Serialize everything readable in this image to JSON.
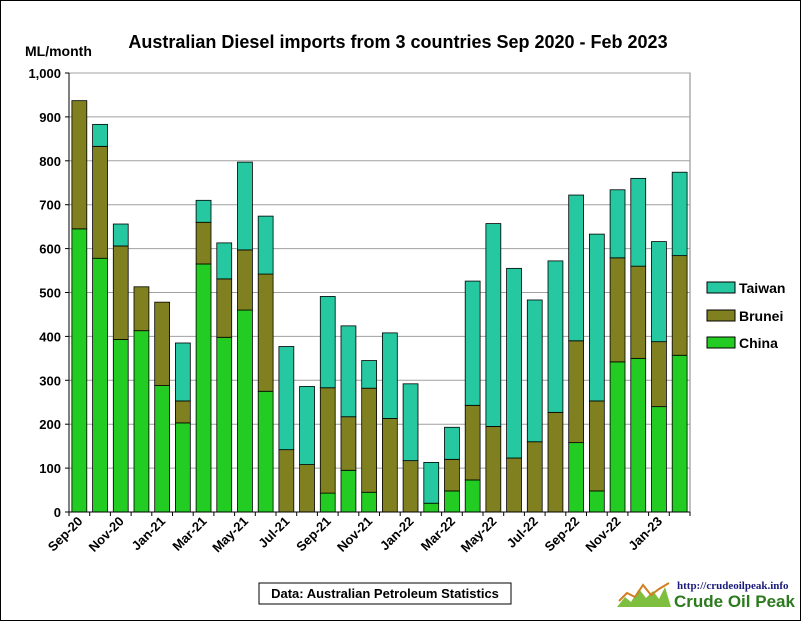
{
  "chart_data": {
    "type": "bar",
    "stacked": true,
    "title": "Australian  Diesel imports  from 3 countries  Sep 2020 - Feb 2023",
    "ylabel": "ML/month",
    "xlabel": "",
    "ylim": [
      0,
      1000
    ],
    "y_ticks": [
      "0",
      "100",
      "200",
      "300",
      "400",
      "500",
      "600",
      "700",
      "800",
      "900",
      "1,000"
    ],
    "y_tick_values": [
      0,
      100,
      200,
      300,
      400,
      500,
      600,
      700,
      800,
      900,
      1000
    ],
    "grid": true,
    "legend_position": "right",
    "categories": [
      "Sep-20",
      "Oct-20",
      "Nov-20",
      "Dec-20",
      "Jan-21",
      "Feb-21",
      "Mar-21",
      "Apr-21",
      "May-21",
      "Jun-21",
      "Jul-21",
      "Aug-21",
      "Sep-21",
      "Oct-21",
      "Nov-21",
      "Dec-21",
      "Jan-22",
      "Feb-22",
      "Mar-22",
      "Apr-22",
      "May-22",
      "Jun-22",
      "Jul-22",
      "Aug-22",
      "Sep-22",
      "Oct-22",
      "Nov-22",
      "Dec-22",
      "Jan-23",
      "Feb-23"
    ],
    "x_tick_labels": [
      "Sep-20",
      "Nov-20",
      "Jan-21",
      "Mar-21",
      "May-21",
      "Jul-21",
      "Sep-21",
      "Nov-21",
      "Jan-22",
      "Mar-22",
      "May-22",
      "Jul-22",
      "Sep-22",
      "Nov-22",
      "Jan-23"
    ],
    "series": [
      {
        "name": "China",
        "color": "#22cc22",
        "values": [
          645,
          578,
          393,
          413,
          288,
          203,
          565,
          398,
          460,
          275,
          0,
          0,
          43,
          95,
          45,
          0,
          0,
          20,
          48,
          73,
          0,
          0,
          0,
          0,
          158,
          48,
          342,
          350,
          240,
          357
        ]
      },
      {
        "name": "Brunei",
        "color": "#808020",
        "values": [
          292,
          255,
          213,
          100,
          190,
          50,
          95,
          133,
          137,
          267,
          142,
          108,
          240,
          122,
          237,
          213,
          117,
          0,
          72,
          170,
          195,
          123,
          160,
          227,
          232,
          205,
          237,
          210,
          148,
          227
        ]
      },
      {
        "name": "Taiwan",
        "color": "#25c8a0",
        "values": [
          0,
          50,
          50,
          0,
          0,
          132,
          50,
          82,
          200,
          132,
          235,
          178,
          208,
          207,
          63,
          195,
          175,
          93,
          73,
          283,
          462,
          432,
          323,
          345,
          332,
          380,
          155,
          200,
          228,
          190
        ]
      }
    ]
  },
  "legend": {
    "items": [
      {
        "label": "Taiwan",
        "color": "#25c8a0"
      },
      {
        "label": "Brunei",
        "color": "#808020"
      },
      {
        "label": "China",
        "color": "#22cc22"
      }
    ]
  },
  "source_note": "Data: Australian Petroleum Statistics",
  "logo": {
    "url": "http://crudeoilpeak.info",
    "name": "Crude Oil Peak"
  }
}
